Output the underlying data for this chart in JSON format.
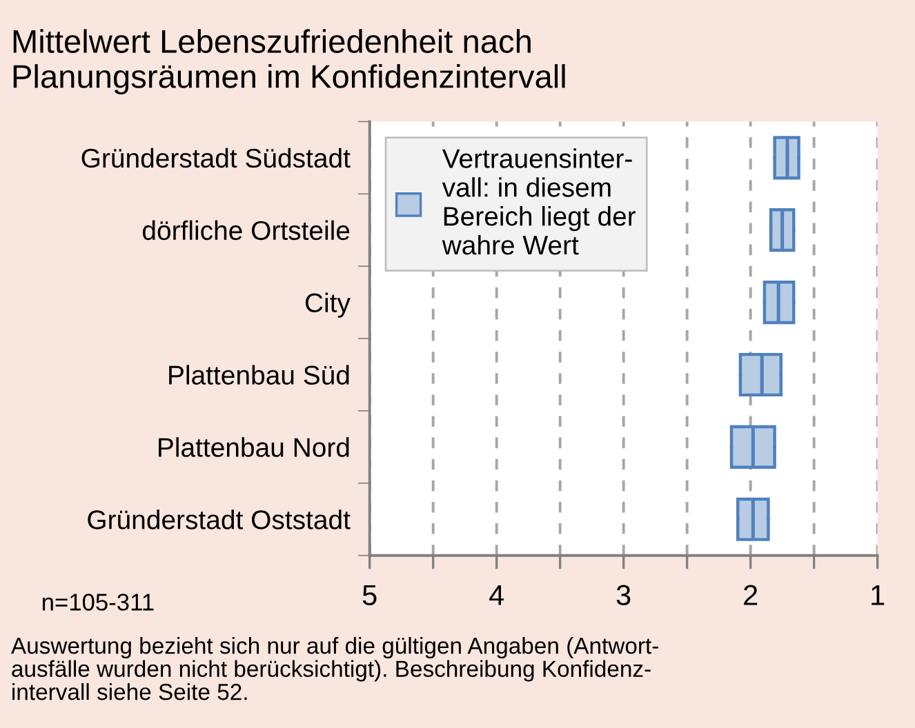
{
  "chart_data": {
    "type": "box",
    "orientation": "horizontal",
    "title": "Mittelwert Lebenszufriedenheit nach\nPlanungsräumen im Konfidenzintervall",
    "categories": [
      "Gründerstadt Südstadt",
      "dörfliche Ortsteile",
      "City",
      "Plattenbau Süd",
      "Plattenbau Nord",
      "Gründerstadt Oststadt"
    ],
    "series": [
      {
        "name": "Vertrauensinter-\nvall: in diesem\nBereich liegt der\nwahre Wert",
        "color": "#b8cce4",
        "boxes": [
          {
            "low": 1.62,
            "q1": 1.62,
            "median": 1.71,
            "q3": 1.81,
            "high": 1.81
          },
          {
            "low": 1.66,
            "q1": 1.66,
            "median": 1.75,
            "q3": 1.84,
            "high": 1.84
          },
          {
            "low": 1.66,
            "q1": 1.66,
            "median": 1.78,
            "q3": 1.89,
            "high": 1.89
          },
          {
            "low": 1.76,
            "q1": 1.76,
            "median": 1.91,
            "q3": 2.08,
            "high": 2.08
          },
          {
            "low": 1.81,
            "q1": 1.81,
            "median": 1.98,
            "q3": 2.15,
            "high": 2.15
          },
          {
            "low": 1.86,
            "q1": 1.86,
            "median": 1.98,
            "q3": 2.1,
            "high": 2.1
          }
        ]
      }
    ],
    "xlim": [
      5,
      1
    ],
    "xticks": [
      5,
      {
        "value": 4.5,
        "label": null
      },
      4,
      {
        "value": 3.5,
        "label": null
      },
      3,
      {
        "value": 2.5,
        "label": null
      },
      2,
      {
        "value": 1.5,
        "label": null
      },
      1
    ],
    "grid": "x",
    "legend": "top left",
    "annotations": [
      "n=105-311",
      "Auswertung bezieht sich nur auf die gültigen Angaben (Antwort-\nausfälle wurden nicht berücksichtigt). Beschreibung Konfidenz-\nintervall siehe Seite 52."
    ]
  }
}
